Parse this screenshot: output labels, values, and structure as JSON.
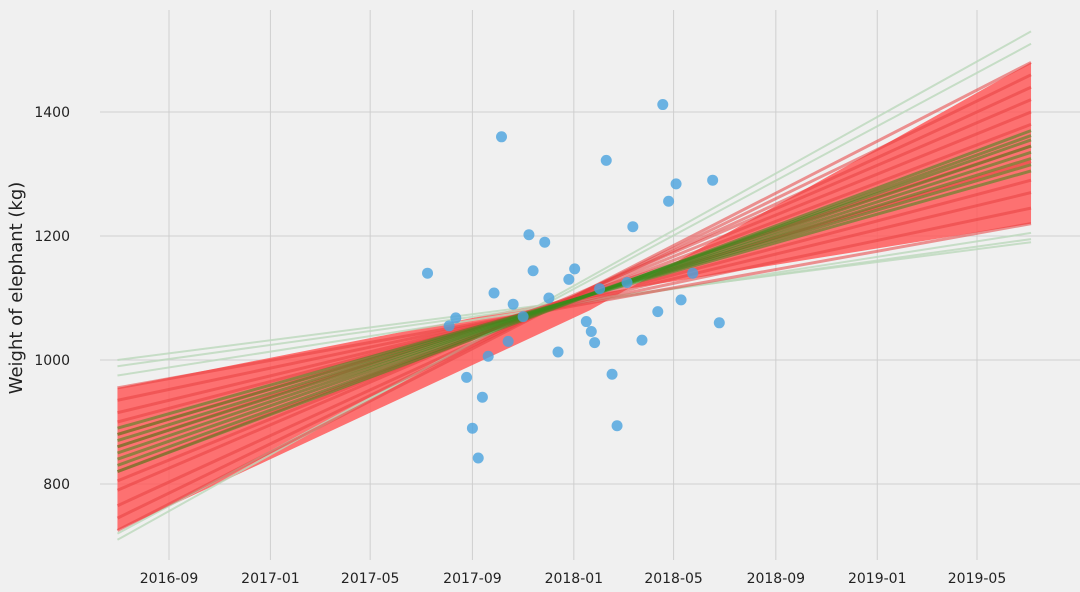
{
  "chart_data": {
    "type": "scatter",
    "title": "",
    "xlabel": "",
    "ylabel": "Weight of elephant (kg)",
    "grid": true,
    "x_axis_type": "date",
    "xlim": [
      "2016-07-01",
      "2019-07-15"
    ],
    "ylim": [
      700,
      1530
    ],
    "x_ticks": [
      "2016-09",
      "2017-01",
      "2017-05",
      "2017-09",
      "2018-01",
      "2018-05",
      "2018-09",
      "2019-01",
      "2019-05"
    ],
    "y_ticks": [
      800,
      1000,
      1200,
      1400
    ],
    "colors": {
      "background": "#f0f0f0",
      "grid": "#cfcfcf",
      "points": "#4aa3df",
      "red_lines": "#ff5a5a",
      "green_lines": "#3a8a1c",
      "faint_lines": "#bcd8bc"
    },
    "series": [
      {
        "type": "scatter",
        "x": [
          "2017-07-09",
          "2017-08-04",
          "2017-08-12",
          "2017-08-25",
          "2017-09-01",
          "2017-09-08",
          "2017-09-13",
          "2017-09-20",
          "2017-09-27",
          "2017-10-06",
          "2017-10-14",
          "2017-10-20",
          "2017-11-08",
          "2017-11-13",
          "2017-11-27",
          "2017-12-13",
          "2017-12-26",
          "2018-01-02",
          "2018-01-16",
          "2018-01-22",
          "2018-01-26",
          "2018-02-09",
          "2018-02-16",
          "2018-02-22",
          "2018-03-13",
          "2018-03-24",
          "2018-04-12",
          "2018-04-18",
          "2018-04-25",
          "2018-05-04",
          "2018-05-10",
          "2018-05-24",
          "2018-06-17",
          "2018-06-25",
          "2017-11-01",
          "2017-12-02",
          "2018-02-01",
          "2018-03-06"
        ],
        "y": [
          1140,
          1055,
          1068,
          972,
          890,
          842,
          940,
          1006,
          1108,
          1360,
          1030,
          1090,
          1202,
          1144,
          1190,
          1013,
          1130,
          1147,
          1062,
          1046,
          1028,
          1322,
          977,
          894,
          1215,
          1032,
          1078,
          1412,
          1256,
          1284,
          1097,
          1140,
          1290,
          1060,
          1070,
          1100,
          1115,
          1125
        ]
      }
    ],
    "regression_lines": {
      "red": [
        {
          "y_start": 955,
          "y_end": 1220
        },
        {
          "y_start": 725,
          "y_end": 1480
        },
        {
          "y_start": 880,
          "y_end": 1320
        },
        {
          "y_start": 790,
          "y_end": 1420
        },
        {
          "y_start": 935,
          "y_end": 1245
        },
        {
          "y_start": 745,
          "y_end": 1460
        },
        {
          "y_start": 900,
          "y_end": 1290
        },
        {
          "y_start": 820,
          "y_end": 1380
        },
        {
          "y_start": 860,
          "y_end": 1345
        },
        {
          "y_start": 765,
          "y_end": 1440
        },
        {
          "y_start": 915,
          "y_end": 1270
        },
        {
          "y_start": 805,
          "y_end": 1400
        }
      ],
      "green": [
        {
          "y_start": 840,
          "y_end": 1355
        },
        {
          "y_start": 860,
          "y_end": 1335
        },
        {
          "y_start": 820,
          "y_end": 1370
        },
        {
          "y_start": 880,
          "y_end": 1315
        },
        {
          "y_start": 850,
          "y_end": 1345
        },
        {
          "y_start": 870,
          "y_end": 1325
        },
        {
          "y_start": 830,
          "y_end": 1362
        },
        {
          "y_start": 890,
          "y_end": 1305
        }
      ],
      "faint": [
        {
          "y_start": 1000,
          "y_end": 1190
        },
        {
          "y_start": 710,
          "y_end": 1530
        },
        {
          "y_start": 975,
          "y_end": 1205
        },
        {
          "y_start": 720,
          "y_end": 1510
        },
        {
          "y_start": 990,
          "y_end": 1195
        }
      ],
      "x_start": "2016-07-01",
      "x_end": "2019-07-05"
    }
  }
}
